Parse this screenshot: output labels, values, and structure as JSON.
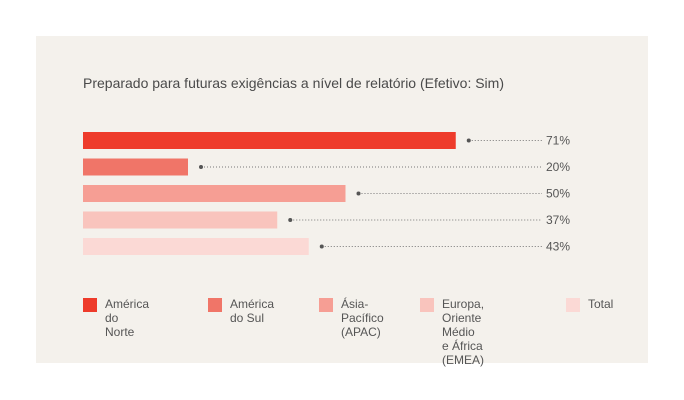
{
  "chart_data": {
    "type": "bar",
    "orientation": "horizontal",
    "title": "Preparado para futuras exigências a nível de relatório (Efetivo: Sim)",
    "categories": [
      "América do Norte",
      "América do Sul",
      "Ásia-Pacífico (APAC)",
      "Europa, Oriente Médio e África (EMEA)",
      "Total"
    ],
    "values": [
      71,
      20,
      50,
      37,
      43
    ],
    "value_labels": [
      "71%",
      "20%",
      "50%",
      "37%",
      "43%"
    ],
    "colors": [
      "#ee3b2b",
      "#f07568",
      "#f69e94",
      "#f9c4bd",
      "#fbd9d5"
    ],
    "xlim": [
      0,
      100
    ],
    "legend": [
      {
        "label": "América do Norte",
        "color": "#ee3b2b"
      },
      {
        "label": "América do Sul",
        "color": "#f07568"
      },
      {
        "label": "Ásia-Pacífico\n(APAC)",
        "color": "#f69e94"
      },
      {
        "label": "Europa, Oriente Médio\ne África (EMEA)",
        "color": "#f9c4bd"
      },
      {
        "label": "Total",
        "color": "#fbd9d5"
      }
    ],
    "legend_position": "bottom"
  }
}
